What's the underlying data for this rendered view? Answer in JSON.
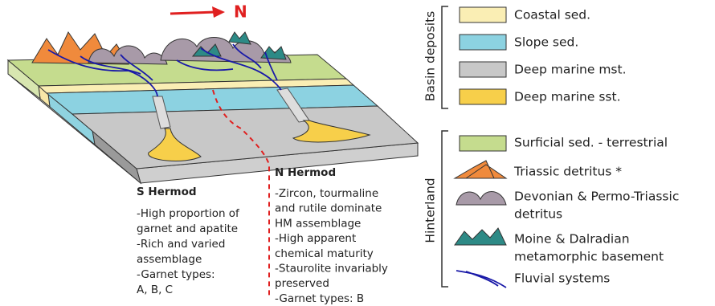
{
  "north_arrow": "N",
  "diagram": {
    "s_hermod": {
      "title": "S Hermod",
      "lines": [
        "-High proportion of",
        "garnet and apatite",
        "-Rich and varied",
        "assemblage",
        "-Garnet types:",
        "A, B, C"
      ]
    },
    "n_hermod": {
      "title": "N Hermod",
      "lines": [
        "-Zircon, tourmaline",
        "and rutile dominate",
        "HM assemblage",
        "-High apparent",
        "chemical maturity",
        "-Staurolite invariably",
        "preserved",
        "-Garnet types: B"
      ]
    }
  },
  "legend": {
    "basin_deposits": {
      "label": "Basin deposits",
      "items": [
        [
          "Coastal sed."
        ],
        [
          "Slope sed."
        ],
        [
          "Deep marine mst."
        ],
        [
          "Deep marine sst."
        ]
      ]
    },
    "hinterland": {
      "label": "Hinterland",
      "items": [
        [
          "Surficial sed. - terrestrial"
        ],
        [
          "Triassic detritus *"
        ],
        [
          "Devonian & Permo-Triassic",
          "detritus"
        ],
        [
          "Moine & Dalradian",
          "metamorphic basement"
        ],
        [
          "Fluvial systems"
        ]
      ]
    }
  }
}
